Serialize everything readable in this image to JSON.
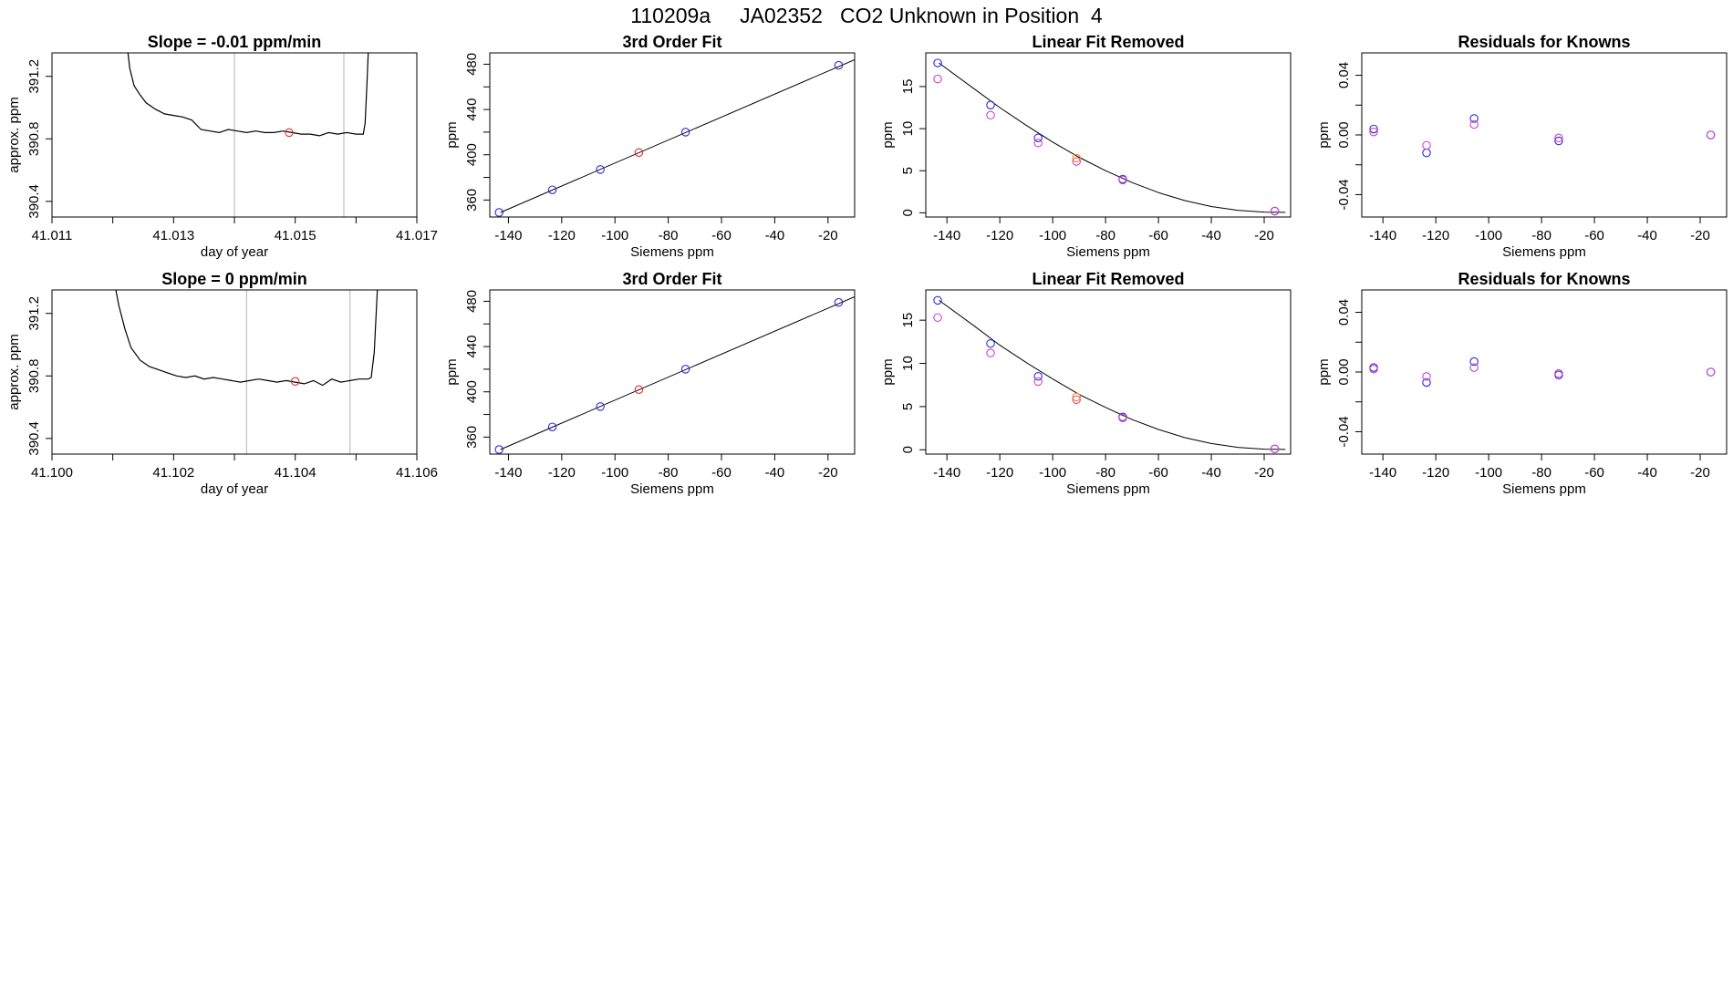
{
  "title": "110209a     JA02352   CO2 Unknown in Position  4",
  "colors": {
    "line": "#000000",
    "blue": "#2a2ae0",
    "magenta": "#cc44cc",
    "red": "#e02a2a",
    "orange": "#ff8800",
    "purple": "#8a2be2",
    "vline": "#bfbfbf"
  },
  "chart_data": [
    {
      "type": "line",
      "title": "Slope =  -0.01  ppm/min",
      "xlabel": "day of year",
      "ylabel": "approx. ppm",
      "xlim": [
        41.011,
        41.017
      ],
      "ylim": [
        390.3,
        391.35
      ],
      "xticks": [
        41.011,
        41.012,
        41.013,
        41.014,
        41.015,
        41.016,
        41.017
      ],
      "xtick_labels": [
        "41.011",
        "",
        "41.013",
        "",
        "41.015",
        "",
        "41.017"
      ],
      "yticks": [
        390.4,
        390.8,
        391.2
      ],
      "ytick_labels": [
        "390.4",
        "390.8",
        "391.2"
      ],
      "vlines": [
        41.014,
        41.0158
      ],
      "series": [
        {
          "x": [
            41.01225,
            41.01228,
            41.01235,
            41.01245,
            41.01255,
            41.0127,
            41.01285,
            41.013,
            41.01315,
            41.0133,
            41.01345,
            41.0136,
            41.01375,
            41.0139,
            41.01405,
            41.0142,
            41.01435,
            41.0145,
            41.01465,
            41.0148,
            41.01495,
            41.0151,
            41.01525,
            41.0154,
            41.01555,
            41.0157,
            41.01585,
            41.016,
            41.01612,
            41.01615,
            41.01618,
            41.0162
          ],
          "y": [
            391.35,
            391.25,
            391.14,
            391.08,
            391.03,
            390.99,
            390.96,
            390.95,
            390.94,
            390.92,
            390.86,
            390.85,
            390.84,
            390.86,
            390.85,
            390.84,
            390.85,
            390.84,
            390.84,
            390.85,
            390.84,
            390.83,
            390.83,
            390.82,
            390.84,
            390.83,
            390.84,
            390.83,
            390.83,
            390.9,
            391.15,
            391.35
          ]
        },
        {
          "x": [
            41.0149
          ],
          "y": [
            390.84
          ],
          "marker": "circle",
          "color": "red"
        }
      ]
    },
    {
      "type": "scatter",
      "title": "3rd Order Fit",
      "xlabel": "Siemens ppm",
      "ylabel": "ppm",
      "xlim": [
        -147,
        -10
      ],
      "ylim": [
        345,
        490
      ],
      "xticks": [
        -140,
        -120,
        -100,
        -80,
        -60,
        -40,
        -20
      ],
      "xtick_labels": [
        "-140",
        "-120",
        "-100",
        "-80",
        "-60",
        "-40",
        "-20"
      ],
      "yticks": [
        360,
        380,
        400,
        420,
        440,
        460,
        480
      ],
      "ytick_labels": [
        "360",
        "",
        "400",
        "",
        "440",
        "",
        "480"
      ],
      "fit_line": {
        "x": [
          -143,
          -10
        ],
        "y": [
          349,
          484
        ]
      },
      "series": [
        {
          "x": [
            -143.5,
            -123.5,
            -105.5,
            -73.5,
            -16
          ],
          "y": [
            349,
            369,
            387,
            420,
            479
          ],
          "color": "blue"
        },
        {
          "x": [
            -91
          ],
          "y": [
            402
          ],
          "color": "red"
        }
      ]
    },
    {
      "type": "scatter",
      "title": "Linear Fit Removed",
      "xlabel": "Siemens ppm",
      "ylabel": "ppm",
      "xlim": [
        -148,
        -10
      ],
      "ylim": [
        -0.5,
        19
      ],
      "xticks": [
        -140,
        -120,
        -100,
        -80,
        -60,
        -40,
        -20
      ],
      "xtick_labels": [
        "-140",
        "-120",
        "-100",
        "-80",
        "-60",
        "-40",
        "-20"
      ],
      "yticks": [
        0,
        5,
        10,
        15
      ],
      "ytick_labels": [
        "0",
        "5",
        "10",
        "15"
      ],
      "fit_curve": {
        "x": [
          -143,
          -130,
          -120,
          -110,
          -100,
          -90,
          -80,
          -70,
          -60,
          -50,
          -40,
          -30,
          -20,
          -12
        ],
        "y": [
          17.8,
          14.8,
          12.5,
          10.4,
          8.4,
          6.6,
          5.0,
          3.6,
          2.4,
          1.45,
          0.75,
          0.3,
          0.08,
          0.05
        ]
      },
      "series": [
        {
          "x": [
            -143.5,
            -123.5,
            -105.5,
            -73.5,
            -16
          ],
          "y": [
            17.8,
            12.8,
            8.9,
            4.0,
            0.2
          ],
          "color": "blue"
        },
        {
          "x": [
            -143.5,
            -123.5,
            -105.5,
            -91,
            -73.5,
            -16
          ],
          "y": [
            15.9,
            11.6,
            8.3,
            6.1,
            3.9,
            0.2
          ],
          "color": "magenta"
        },
        {
          "x": [
            -91
          ],
          "y": [
            6.5
          ],
          "color": "orange"
        }
      ]
    },
    {
      "type": "scatter",
      "title": "Residuals for Knowns",
      "xlabel": "Siemens ppm",
      "ylabel": "ppm",
      "xlim": [
        -148,
        -10
      ],
      "ylim": [
        -0.055,
        0.055
      ],
      "xticks": [
        -140,
        -120,
        -100,
        -80,
        -60,
        -40,
        -20
      ],
      "xtick_labels": [
        "-140",
        "-120",
        "-100",
        "-80",
        "-60",
        "-40",
        "-20"
      ],
      "yticks": [
        -0.04,
        -0.02,
        0.0,
        0.02,
        0.04
      ],
      "ytick_labels": [
        "-0.04",
        "",
        "0.00",
        "",
        "0.04"
      ],
      "series": [
        {
          "x": [
            -143.5,
            -123.5,
            -105.5,
            -73.5,
            -16
          ],
          "y": [
            0.004,
            -0.012,
            0.011,
            -0.004,
            0.0
          ],
          "color": "blue"
        },
        {
          "x": [
            -143.5,
            -123.5,
            -105.5,
            -73.5,
            -16
          ],
          "y": [
            0.002,
            -0.007,
            0.007,
            -0.002,
            0.0
          ],
          "color": "magenta"
        }
      ]
    },
    {
      "type": "line",
      "title": "Slope =  0  ppm/min",
      "xlabel": "day of year",
      "ylabel": "approx. ppm",
      "xlim": [
        41.1,
        41.106
      ],
      "ylim": [
        390.3,
        391.35
      ],
      "xticks": [
        41.1,
        41.101,
        41.102,
        41.103,
        41.104,
        41.105,
        41.106
      ],
      "xtick_labels": [
        "41.100",
        "",
        "41.102",
        "",
        "41.104",
        "",
        "41.106"
      ],
      "yticks": [
        390.4,
        390.8,
        391.2
      ],
      "ytick_labels": [
        "390.4",
        "390.8",
        "391.2"
      ],
      "vlines": [
        41.1032,
        41.1049
      ],
      "series": [
        {
          "x": [
            41.10105,
            41.1011,
            41.1012,
            41.1013,
            41.10145,
            41.1016,
            41.10175,
            41.1019,
            41.10205,
            41.1022,
            41.10235,
            41.1025,
            41.10265,
            41.1028,
            41.10295,
            41.1031,
            41.10325,
            41.1034,
            41.10355,
            41.1037,
            41.10385,
            41.104,
            41.10415,
            41.1043,
            41.10445,
            41.1046,
            41.10475,
            41.1049,
            41.10505,
            41.1052,
            41.10525,
            41.1053,
            41.10535
          ],
          "y": [
            391.35,
            391.25,
            391.1,
            390.98,
            390.9,
            390.86,
            390.84,
            390.82,
            390.8,
            390.79,
            390.8,
            390.78,
            390.79,
            390.78,
            390.77,
            390.76,
            390.77,
            390.78,
            390.77,
            390.76,
            390.77,
            390.76,
            390.75,
            390.77,
            390.74,
            390.78,
            390.76,
            390.77,
            390.78,
            390.78,
            390.79,
            390.95,
            391.35
          ]
        },
        {
          "x": [
            41.104
          ],
          "y": [
            390.765
          ],
          "marker": "circle",
          "color": "red"
        }
      ]
    },
    {
      "type": "scatter",
      "title": "3rd Order Fit",
      "xlabel": "Siemens ppm",
      "ylabel": "ppm",
      "xlim": [
        -147,
        -10
      ],
      "ylim": [
        345,
        490
      ],
      "xticks": [
        -140,
        -120,
        -100,
        -80,
        -60,
        -40,
        -20
      ],
      "xtick_labels": [
        "-140",
        "-120",
        "-100",
        "-80",
        "-60",
        "-40",
        "-20"
      ],
      "yticks": [
        360,
        380,
        400,
        420,
        440,
        460,
        480
      ],
      "ytick_labels": [
        "360",
        "",
        "400",
        "",
        "440",
        "",
        "480"
      ],
      "fit_line": {
        "x": [
          -143,
          -10
        ],
        "y": [
          349,
          484
        ]
      },
      "series": [
        {
          "x": [
            -143.5,
            -123.5,
            -105.5,
            -73.5,
            -16
          ],
          "y": [
            349,
            369,
            387,
            420,
            479
          ],
          "color": "blue"
        },
        {
          "x": [
            -91
          ],
          "y": [
            402
          ],
          "color": "red"
        }
      ]
    },
    {
      "type": "scatter",
      "title": "Linear Fit Removed",
      "xlabel": "Siemens ppm",
      "ylabel": "ppm",
      "xlim": [
        -148,
        -10
      ],
      "ylim": [
        -0.5,
        18.5
      ],
      "xticks": [
        -140,
        -120,
        -100,
        -80,
        -60,
        -40,
        -20
      ],
      "xtick_labels": [
        "-140",
        "-120",
        "-100",
        "-80",
        "-60",
        "-40",
        "-20"
      ],
      "yticks": [
        0,
        5,
        10,
        15
      ],
      "ytick_labels": [
        "0",
        "5",
        "10",
        "15"
      ],
      "fit_curve": {
        "x": [
          -143,
          -130,
          -120,
          -110,
          -100,
          -90,
          -80,
          -70,
          -60,
          -50,
          -40,
          -30,
          -20,
          -12
        ],
        "y": [
          17.3,
          14.4,
          12.1,
          10.1,
          8.2,
          6.4,
          4.9,
          3.5,
          2.35,
          1.4,
          0.72,
          0.28,
          0.07,
          0.04
        ]
      },
      "series": [
        {
          "x": [
            -143.5,
            -123.5,
            -105.5,
            -73.5,
            -16
          ],
          "y": [
            17.3,
            12.3,
            8.5,
            3.8,
            0.1
          ],
          "color": "blue"
        },
        {
          "x": [
            -143.5,
            -123.5,
            -105.5,
            -91,
            -73.5,
            -16
          ],
          "y": [
            15.3,
            11.2,
            7.9,
            5.8,
            3.7,
            0.1
          ],
          "color": "magenta"
        },
        {
          "x": [
            -91
          ],
          "y": [
            6.1
          ],
          "color": "orange"
        }
      ]
    },
    {
      "type": "scatter",
      "title": "Residuals for Knowns",
      "xlabel": "Siemens ppm",
      "ylabel": "ppm",
      "xlim": [
        -148,
        -10
      ],
      "ylim": [
        -0.055,
        0.055
      ],
      "xticks": [
        -140,
        -120,
        -100,
        -80,
        -60,
        -40,
        -20
      ],
      "xtick_labels": [
        "-140",
        "-120",
        "-100",
        "-80",
        "-60",
        "-40",
        "-20"
      ],
      "yticks": [
        -0.04,
        -0.02,
        0.0,
        0.02,
        0.04
      ],
      "ytick_labels": [
        "-0.04",
        "",
        "0.00",
        "",
        "0.04"
      ],
      "series": [
        {
          "x": [
            -143.5,
            -123.5,
            -105.5,
            -73.5,
            -16
          ],
          "y": [
            0.003,
            -0.007,
            0.007,
            -0.002,
            0.0
          ],
          "color": "blue"
        },
        {
          "x": [
            -143.5,
            -123.5,
            -105.5,
            -73.5,
            -16
          ],
          "y": [
            0.002,
            -0.003,
            0.003,
            -0.001,
            0.0
          ],
          "color": "magenta"
        }
      ]
    }
  ]
}
